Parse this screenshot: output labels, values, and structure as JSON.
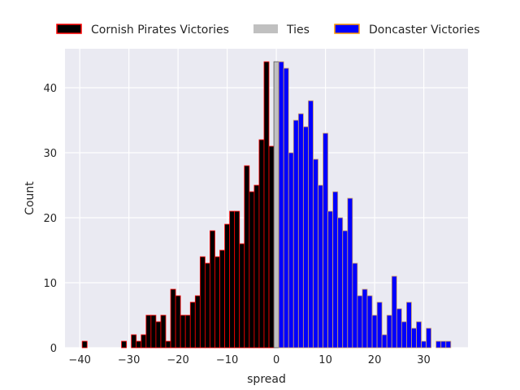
{
  "chart_data": {
    "type": "bar",
    "title": "",
    "xlabel": "spread",
    "ylabel": "Count",
    "xlim": [
      -43,
      39
    ],
    "ylim": [
      0,
      46
    ],
    "xticks": [
      -40,
      -30,
      -20,
      -10,
      0,
      10,
      20,
      30
    ],
    "yticks": [
      0,
      10,
      20,
      30,
      40
    ],
    "grid": true,
    "legend_placement": "top-center-outside",
    "bin_width": 1,
    "series": [
      {
        "name": "Cornish Pirates Victories",
        "fill": "#000000",
        "edge": "#ff0000",
        "x": [
          -39,
          -31,
          -29,
          -28,
          -27,
          -26,
          -25,
          -24,
          -23,
          -22,
          -21,
          -20,
          -19,
          -18,
          -17,
          -16,
          -15,
          -14,
          -13,
          -12,
          -11,
          -10,
          -9,
          -8,
          -7,
          -6,
          -5,
          -4,
          -3,
          -2,
          -1
        ],
        "values": [
          1,
          1,
          2,
          1,
          2,
          5,
          5,
          4,
          5,
          1,
          9,
          8,
          5,
          5,
          7,
          8,
          14,
          13,
          18,
          14,
          15,
          19,
          21,
          21,
          16,
          28,
          24,
          25,
          32,
          44,
          31
        ]
      },
      {
        "name": "Ties",
        "fill": "#c0c0c0",
        "edge": "#555555",
        "x": [
          0
        ],
        "values": [
          44
        ]
      },
      {
        "name": "Doncaster Victories",
        "fill": "#0000ff",
        "edge": "#d2a064",
        "x": [
          1,
          2,
          3,
          4,
          5,
          6,
          7,
          8,
          9,
          10,
          11,
          12,
          13,
          14,
          15,
          16,
          17,
          18,
          19,
          20,
          21,
          22,
          23,
          24,
          25,
          26,
          27,
          28,
          29,
          30,
          31,
          33,
          34,
          35
        ],
        "values": [
          44,
          43,
          30,
          35,
          36,
          34,
          38,
          29,
          25,
          33,
          21,
          24,
          20,
          18,
          23,
          13,
          8,
          9,
          8,
          5,
          7,
          2,
          5,
          11,
          6,
          4,
          7,
          3,
          4,
          1,
          3,
          1,
          1,
          1
        ]
      }
    ]
  }
}
